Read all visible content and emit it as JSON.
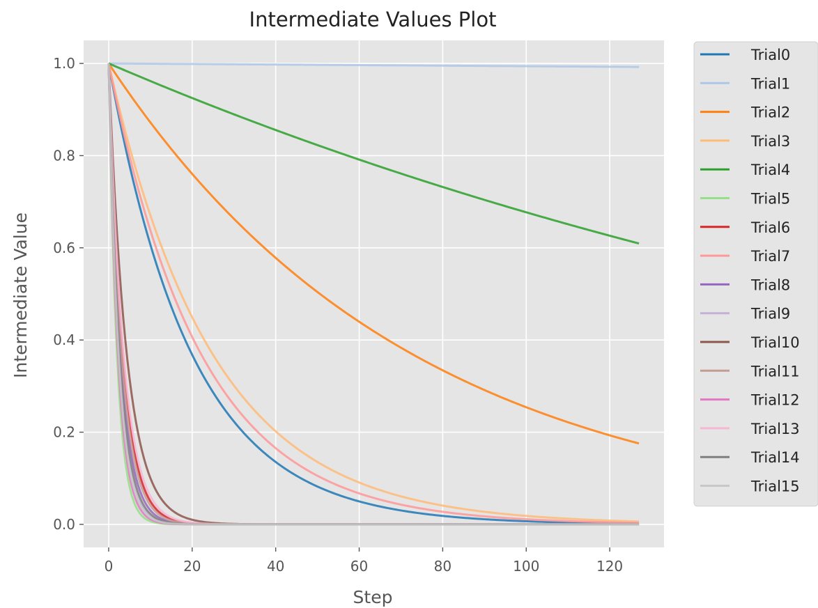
{
  "chart_data": {
    "type": "line",
    "title": "Intermediate Values Plot",
    "xlabel": "Step",
    "ylabel": "Intermediate Value",
    "xlim": [
      -6,
      133
    ],
    "ylim": [
      -0.05,
      1.05
    ],
    "x_ticks": [
      0,
      20,
      40,
      60,
      80,
      100,
      120
    ],
    "y_ticks": [
      0.0,
      0.2,
      0.4,
      0.6,
      0.8,
      1.0
    ],
    "x_tick_labels": [
      "0",
      "20",
      "40",
      "60",
      "80",
      "100",
      "120"
    ],
    "y_tick_labels": [
      "0.0",
      "0.2",
      "0.4",
      "0.6",
      "0.8",
      "1.0"
    ],
    "grid": true,
    "legend_position": "outside-right",
    "background": "#e5e5e5",
    "x_range": [
      0,
      127
    ],
    "series_model": "y = exp(-rate * step)",
    "series": [
      {
        "name": "Trial0",
        "color": "#1f77b4",
        "rate": 0.05,
        "end_value": 0.0017
      },
      {
        "name": "Trial1",
        "color": "#aec7e8",
        "rate": 6e-05,
        "end_value": 0.9924
      },
      {
        "name": "Trial2",
        "color": "#ff7f0e",
        "rate": 0.0137,
        "end_value": 0.175
      },
      {
        "name": "Trial3",
        "color": "#ffbb78",
        "rate": 0.04,
        "end_value": 0.0062
      },
      {
        "name": "Trial4",
        "color": "#2ca02c",
        "rate": 0.0039,
        "end_value": 0.608
      },
      {
        "name": "Trial5",
        "color": "#98df8a",
        "rate": 0.5,
        "end_value": 0.0
      },
      {
        "name": "Trial6",
        "color": "#d62728",
        "rate": 0.3,
        "end_value": 0.0
      },
      {
        "name": "Trial7",
        "color": "#ff9896",
        "rate": 0.045,
        "end_value": 0.0033
      },
      {
        "name": "Trial8",
        "color": "#9467bd",
        "rate": 0.35,
        "end_value": 0.0
      },
      {
        "name": "Trial9",
        "color": "#c5b0d5",
        "rate": 0.4,
        "end_value": 0.0
      },
      {
        "name": "Trial10",
        "color": "#8c564b",
        "rate": 0.23,
        "end_value": 0.0
      },
      {
        "name": "Trial11",
        "color": "#c49c94",
        "rate": 0.32,
        "end_value": 0.0
      },
      {
        "name": "Trial12",
        "color": "#e377c2",
        "rate": 0.45,
        "end_value": 0.0
      },
      {
        "name": "Trial13",
        "color": "#f7b6d2",
        "rate": 0.28,
        "end_value": 0.0
      },
      {
        "name": "Trial14",
        "color": "#7f7f7f",
        "rate": 0.38,
        "end_value": 0.0
      },
      {
        "name": "Trial15",
        "color": "#c7c7c7",
        "rate": 0.42,
        "end_value": 0.0
      }
    ]
  }
}
